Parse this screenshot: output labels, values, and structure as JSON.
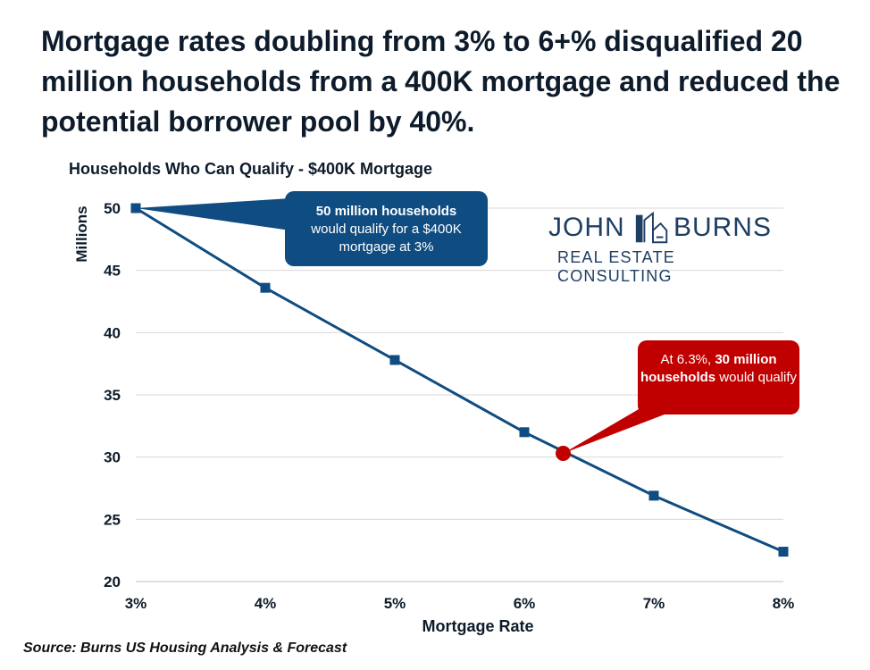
{
  "headline": "Mortgage rates doubling from 3% to 6+% disqualified 20 million households from a 400K mortgage and reduced the potential borrower pool by 40%.",
  "source": "Source: Burns US Housing Analysis & Forecast",
  "logo": {
    "name_part1": "JOHN",
    "name_part2": "BURNS",
    "subtitle": "REAL ESTATE CONSULTING"
  },
  "callouts": {
    "blue": {
      "bold": "50 million households",
      "rest": "would qualify for a $400K mortgage at 3%"
    },
    "red": {
      "prefix": "At 6.3%, ",
      "bold": "30 million households",
      "suffix": " would qualify"
    }
  },
  "colors": {
    "line": "#0f4c81",
    "highlight": "#c00000",
    "grid": "#d9d9d9",
    "logo": "#1f3e63"
  },
  "chart_data": {
    "type": "line",
    "title": "Households Who Can Qualify - $400K Mortgage",
    "xlabel": "Mortgage Rate",
    "ylabel": "Millions",
    "x": [
      3,
      4,
      5,
      6,
      7,
      8
    ],
    "x_tick_labels": [
      "3%",
      "4%",
      "5%",
      "6%",
      "7%",
      "8%"
    ],
    "y_ticks": [
      20,
      25,
      30,
      35,
      40,
      45,
      50
    ],
    "ylim": [
      20,
      50
    ],
    "xlim": [
      3,
      8
    ],
    "grid": true,
    "series": [
      {
        "values": [
          50.0,
          43.6,
          37.8,
          32.0,
          26.9,
          22.4
        ]
      }
    ],
    "highlight_point": {
      "x": 6.3,
      "y": 30.3
    }
  }
}
